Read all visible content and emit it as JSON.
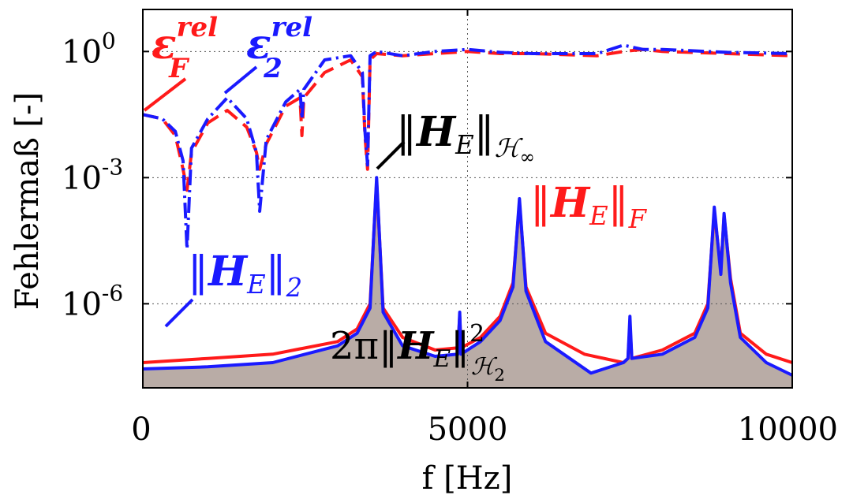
{
  "chart_data": {
    "type": "line",
    "xlabel": "f [Hz]",
    "ylabel": "Fehlermaß [-]",
    "xlim": [
      0,
      10000
    ],
    "ylim_log10": [
      -8,
      1
    ],
    "yscale": "log",
    "grid": true,
    "x_ticks": [
      "0",
      "5000",
      "10000"
    ],
    "y_ticks": [
      {
        "base": "10",
        "exp": "0"
      },
      {
        "base": "10",
        "exp": "-3"
      },
      {
        "base": "10",
        "exp": "-6"
      }
    ],
    "colors": {
      "red": "#ff1a1a",
      "blue": "#1a1aff",
      "fill": "#b9aca6",
      "annotation_black": "#000000"
    },
    "annotations": {
      "eps_F_rel": {
        "symbol": "ε",
        "sub": "F",
        "sup": "rel"
      },
      "eps_2_rel": {
        "symbol": "ε",
        "sub": "2",
        "sup": "rel"
      },
      "H_inf": {
        "open": "‖",
        "sym": "H",
        "sub": "E",
        "close": "‖",
        "norm_sub": "ℋ",
        "norm_sub_sub": "∞"
      },
      "H_F": {
        "open": "‖",
        "sym": "H",
        "sub": "E",
        "close": "‖",
        "norm_sub": "F"
      },
      "H_2": {
        "open": "‖",
        "sym": "H",
        "sub": "E",
        "close": "‖",
        "norm_sub": "2"
      },
      "H_H2": {
        "prefix": "2π",
        "open": "‖",
        "sym": "H",
        "sub": "E",
        "close": "‖",
        "sup": "2",
        "norm_sub": "ℋ",
        "norm_sub_sub": "2"
      }
    },
    "series": [
      {
        "id": "eps_F_rel",
        "color": "red",
        "style": "dashed",
        "x": [
          0,
          300,
          500,
          620,
          680,
          750,
          1000,
          1300,
          1600,
          1750,
          1800,
          1900,
          2200,
          2420,
          2450,
          2480,
          2800,
          3200,
          3380,
          3420,
          3460,
          3500,
          3600,
          4000,
          4500,
          5000,
          5500,
          6000,
          7000,
          7400,
          7700,
          8000,
          9000,
          10000
        ],
        "logy": [
          -1.5,
          -1.6,
          -2.0,
          -2.8,
          -3.3,
          -2.4,
          -1.7,
          -1.4,
          -1.8,
          -2.4,
          -2.8,
          -2.2,
          -1.3,
          -1.1,
          -2.0,
          -1.1,
          -0.5,
          -0.2,
          -0.6,
          -2.0,
          -2.8,
          -0.2,
          -0.05,
          -0.1,
          -0.05,
          0.0,
          -0.05,
          -0.05,
          -0.1,
          0.0,
          0.05,
          0.0,
          -0.05,
          -0.1
        ]
      },
      {
        "id": "eps_2_rel",
        "color": "blue",
        "style": "dashdot",
        "x": [
          0,
          300,
          500,
          620,
          680,
          750,
          1000,
          1300,
          1600,
          1750,
          1800,
          1900,
          2200,
          2420,
          2450,
          2480,
          2800,
          3200,
          3380,
          3420,
          3460,
          3500,
          3600,
          4000,
          4500,
          5000,
          5500,
          6000,
          7000,
          7400,
          7700,
          8000,
          9000,
          10000
        ],
        "logy": [
          -1.5,
          -1.6,
          -1.9,
          -2.6,
          -4.7,
          -2.3,
          -1.6,
          -1.1,
          -1.6,
          -2.4,
          -3.8,
          -2.1,
          -1.2,
          -0.9,
          -1.6,
          -0.9,
          -0.2,
          -0.1,
          -0.5,
          -1.9,
          -2.7,
          -0.1,
          0.0,
          -0.1,
          0.0,
          0.05,
          -0.02,
          -0.05,
          -0.05,
          0.15,
          0.05,
          0.05,
          -0.02,
          -0.05
        ]
      },
      {
        "id": "H_E_F",
        "color": "red",
        "style": "solid",
        "x": [
          0,
          1000,
          2000,
          3000,
          3300,
          3500,
          3600,
          3700,
          4000,
          4500,
          4850,
          4880,
          4900,
          5200,
          5500,
          5700,
          5800,
          5900,
          6200,
          6800,
          7400,
          7470,
          7500,
          7530,
          8000,
          8500,
          8700,
          8800,
          8900,
          8950,
          9050,
          9200,
          9600,
          10000
        ],
        "logy": [
          -7.4,
          -7.3,
          -7.2,
          -6.9,
          -6.6,
          -6.0,
          -3.1,
          -6.1,
          -6.8,
          -7.1,
          -7.05,
          -6.3,
          -7.05,
          -6.8,
          -6.3,
          -5.5,
          -3.6,
          -5.6,
          -6.7,
          -7.2,
          -7.4,
          -7.3,
          -6.5,
          -7.3,
          -7.1,
          -6.7,
          -6.0,
          -3.8,
          -5.2,
          -3.9,
          -5.4,
          -6.7,
          -7.2,
          -7.4
        ]
      },
      {
        "id": "H_E_2",
        "color": "blue",
        "style": "solid",
        "x": [
          0,
          1000,
          2000,
          3000,
          3300,
          3500,
          3600,
          3700,
          4000,
          4500,
          4850,
          4880,
          4900,
          5200,
          5500,
          5700,
          5800,
          5900,
          6200,
          6900,
          7400,
          7470,
          7500,
          7530,
          8000,
          8500,
          8700,
          8800,
          8900,
          8950,
          9050,
          9200,
          9600,
          10000
        ],
        "logy": [
          -7.55,
          -7.5,
          -7.4,
          -7.0,
          -6.7,
          -6.1,
          -3.0,
          -6.2,
          -7.0,
          -7.25,
          -7.2,
          -6.2,
          -7.2,
          -6.9,
          -6.4,
          -5.6,
          -3.5,
          -5.7,
          -6.9,
          -7.65,
          -7.4,
          -7.3,
          -6.3,
          -7.3,
          -7.2,
          -6.8,
          -6.1,
          -3.7,
          -5.3,
          -3.85,
          -5.5,
          -6.8,
          -7.4,
          -7.7
        ]
      }
    ],
    "filled_area": {
      "id": "2pi_H_H2_sq",
      "color": "fill",
      "x": [
        0,
        1000,
        2000,
        3000,
        3300,
        3500,
        3600,
        3700,
        4000,
        4500,
        4850,
        4880,
        4900,
        5200,
        5500,
        5700,
        5800,
        5900,
        6200,
        6900,
        7400,
        7470,
        7500,
        7530,
        8000,
        8500,
        8700,
        8800,
        8900,
        8950,
        9050,
        9200,
        9600,
        10000
      ],
      "logy": [
        -7.55,
        -7.5,
        -7.4,
        -7.0,
        -6.7,
        -6.1,
        -3.0,
        -6.2,
        -7.0,
        -7.25,
        -7.2,
        -6.2,
        -7.2,
        -6.9,
        -6.4,
        -5.6,
        -3.5,
        -5.7,
        -6.9,
        -7.65,
        -7.4,
        -7.3,
        -6.3,
        -7.3,
        -7.2,
        -6.8,
        -6.1,
        -3.7,
        -5.3,
        -3.85,
        -5.5,
        -6.8,
        -7.4,
        -7.7
      ]
    }
  }
}
